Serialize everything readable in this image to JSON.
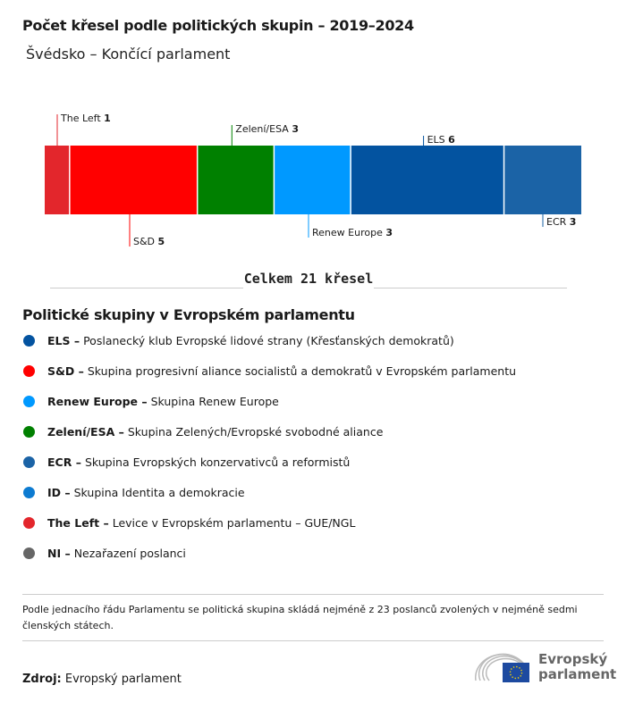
{
  "title": "Počet křesel podle politických skupin – 2019–2024",
  "subtitle": "Švédsko – Končící parlament",
  "chart_data": {
    "type": "bar",
    "orientation": "stacked-horizontal",
    "categories": [
      "The Left",
      "S&D",
      "Zelení/ESA",
      "Renew Europe",
      "ELS",
      "ECR"
    ],
    "values": [
      1,
      5,
      3,
      3,
      6,
      3
    ],
    "colors": [
      "#e3262c",
      "#ff0000",
      "#008000",
      "#0099ff",
      "#0353a0",
      "#1b63a6"
    ],
    "label_positions": [
      "top",
      "bottom",
      "top",
      "bottom",
      "top",
      "bottom"
    ]
  },
  "total_label": "Celkem 21 křesel",
  "legend": {
    "title": "Politické skupiny v Evropském parlamentu",
    "items": [
      {
        "abbr": "ELS –",
        "name": "Poslanecký klub Evropské lidové strany (Křesťanských demokratů)",
        "color": "#0353a0"
      },
      {
        "abbr": "S&D –",
        "name": "Skupina progresivní aliance socialistů a demokratů v Evropském parlamentu",
        "color": "#ff0000"
      },
      {
        "abbr": "Renew Europe –",
        "name": "Skupina Renew Europe",
        "color": "#0099ff"
      },
      {
        "abbr": "Zelení/ESA –",
        "name": "Skupina Zelených/Evropské svobodné aliance",
        "color": "#008000"
      },
      {
        "abbr": "ECR –",
        "name": "Skupina Evropských konzervativců a reformistů",
        "color": "#1b63a6"
      },
      {
        "abbr": "ID –",
        "name": "Skupina Identita a demokracie",
        "color": "#0d7bd1"
      },
      {
        "abbr": "The Left –",
        "name": "Levice v Evropském parlamentu – GUE/NGL",
        "color": "#e3262c"
      },
      {
        "abbr": "NI –",
        "name": "Nezařazení poslanci",
        "color": "#666666"
      }
    ]
  },
  "note": "Podle jednacího řádu Parlamentu se politická skupina skládá nejméně z 23 poslanců zvolených v nejméně sedmi členských státech.",
  "source": {
    "label": "Zdroj:",
    "value": "Evropský parlament"
  },
  "logo": {
    "line1": "Evropský",
    "line2": "parlament"
  }
}
